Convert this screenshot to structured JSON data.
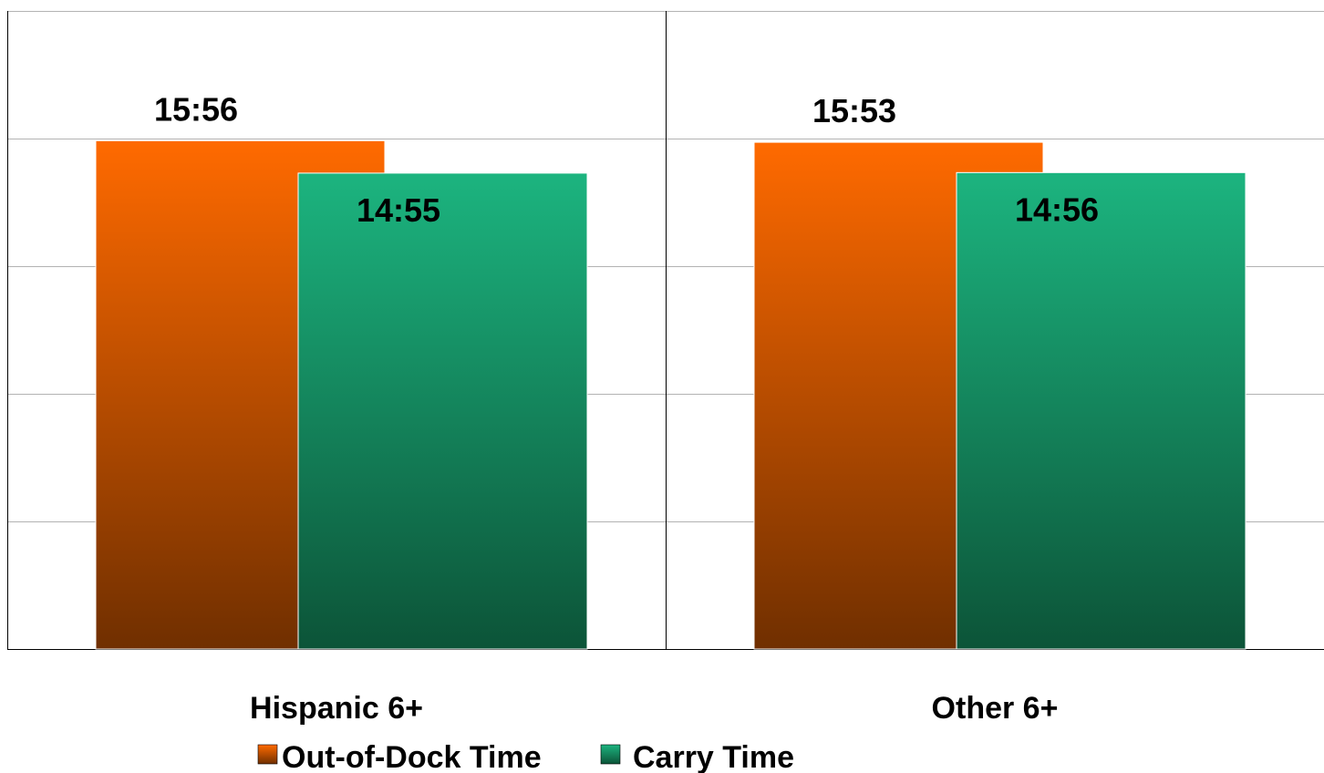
{
  "chart_data": {
    "type": "bar",
    "categories": [
      "Hispanic 6+",
      "Other 6+"
    ],
    "series": [
      {
        "name": "Out-of-Dock Time",
        "values": [
          956,
          953
        ],
        "labels": [
          "15:56",
          "15:53"
        ],
        "color": "#ff6a00",
        "color_dark": "#702f00"
      },
      {
        "name": "Carry Time",
        "values": [
          895,
          896
        ],
        "labels": [
          "14:55",
          "14:56"
        ],
        "color": "#1cb47f",
        "color_dark": "#0c5438"
      }
    ],
    "ylim": [
      0,
      1200
    ],
    "grid": true,
    "legend_position": "bottom"
  }
}
